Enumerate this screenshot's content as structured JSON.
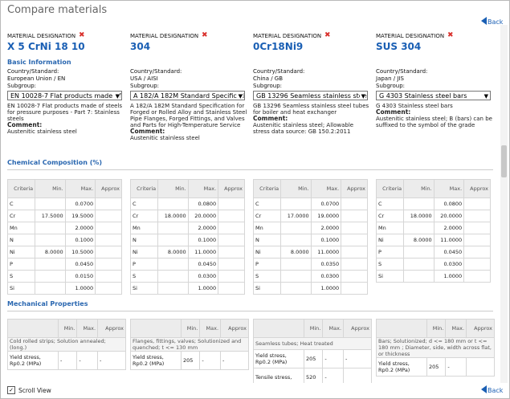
{
  "header": {
    "title": "Compare materials",
    "back": "Back"
  },
  "labels": {
    "designation": "MATERIAL DESIGNATION",
    "country": "Country/Standard:",
    "subgroup": "Subgroup:",
    "comment": "Comment:"
  },
  "sections": {
    "basic": "Basic Information",
    "chemical": "Chemical Composition (%)",
    "mechanical": "Mechanical Properties"
  },
  "materials": [
    {
      "name": "X 5 CrNi 18 10",
      "country": "European Union / EN",
      "description": "EN 10028-7 Flat products made of steels for pressure purposes - Part 7: Stainless steels",
      "comment": "Austenitic stainless steel"
    },
    {
      "name": "304",
      "country": "USA / AISI",
      "description": "A 182/A 182M Standard Specification for Forged or Rolled Alloy and Stainless Steel Pipe Flanges, Forged Fittings, and Valves and Parts for High-Temperature Service",
      "comment": "Austenitic stainless steel"
    },
    {
      "name": "0Cr18Ni9",
      "country": "China / GB",
      "description": "GB 13296 Seamless stainless steel tubes for boiler and heat exchanger",
      "comment": "Austenitic stainless steel; Allowable stress data source: GB 150.2:2011"
    },
    {
      "name": "SUS 304",
      "country": "Japan / JIS",
      "description": "G 4303 Stainless steel bars",
      "comment": "Austenitic stainless steel; B (bars) can be suffixed to the symbol of the grade"
    }
  ],
  "chemical": {
    "headers": [
      "Criteria",
      "Min.",
      "Max.",
      "Approx"
    ],
    "tables": [
      [
        [
          "C",
          null,
          "0.0700",
          null
        ],
        [
          "Cr",
          "17.5000",
          "19.5000",
          null
        ],
        [
          "Mn",
          null,
          "2.0000",
          null
        ],
        [
          "N",
          null,
          "0.1000",
          null
        ],
        [
          "Ni",
          "8.0000",
          "10.5000",
          null
        ],
        [
          "P",
          null,
          "0.0450",
          null
        ],
        [
          "S",
          null,
          "0.0150",
          null
        ],
        [
          "Si",
          null,
          "1.0000",
          null
        ]
      ],
      [
        [
          "C",
          null,
          "0.0800",
          null
        ],
        [
          "Cr",
          "18.0000",
          "20.0000",
          null
        ],
        [
          "Mn",
          null,
          "2.0000",
          null
        ],
        [
          "N",
          null,
          "0.1000",
          null
        ],
        [
          "Ni",
          "8.0000",
          "11.0000",
          null
        ],
        [
          "P",
          null,
          "0.0450",
          null
        ],
        [
          "S",
          null,
          "0.0300",
          null
        ],
        [
          "Si",
          null,
          "1.0000",
          null
        ]
      ],
      [
        [
          "C",
          null,
          "0.0700",
          null
        ],
        [
          "Cr",
          "17.0000",
          "19.0000",
          null
        ],
        [
          "Mn",
          null,
          "2.0000",
          null
        ],
        [
          "N",
          null,
          "0.1000",
          null
        ],
        [
          "Ni",
          "8.0000",
          "11.0000",
          null
        ],
        [
          "P",
          null,
          "0.0350",
          null
        ],
        [
          "S",
          null,
          "0.0300",
          null
        ],
        [
          "Si",
          null,
          "1.0000",
          null
        ]
      ],
      [
        [
          "C",
          null,
          "0.0800",
          null
        ],
        [
          "Cr",
          "18.0000",
          "20.0000",
          null
        ],
        [
          "Mn",
          null,
          "2.0000",
          null
        ],
        [
          "Ni",
          "8.0000",
          "11.0000",
          null
        ],
        [
          "P",
          null,
          "0.0450",
          null
        ],
        [
          "S",
          null,
          "0.0300",
          null
        ],
        [
          "Si",
          null,
          "1.0000",
          null
        ]
      ]
    ]
  },
  "mechanical": {
    "headers": [
      "Min.",
      "Max.",
      "Approx"
    ],
    "tables": [
      {
        "group": "Cold rolled strips; Solution annealed; (long.)",
        "rows": [
          [
            "Yield stress, Rp0.2 (MPa)",
            "-",
            "-",
            "-"
          ]
        ]
      },
      {
        "group": "Flanges, fittings, valves; Solutionized and quenched; t <= 130 mm",
        "rows": [
          [
            "Yield stress, Rp0.2 (MPa)",
            "205",
            "-",
            "-"
          ]
        ]
      },
      {
        "group": "Seamless tubes; Heat treated",
        "rows": [
          [
            "Yield stress, Rp0.2 (MPa)",
            "205",
            "-",
            "-"
          ],
          [
            "Tensile stress,",
            "520",
            "-",
            null
          ]
        ]
      },
      {
        "group": "Bars; Solutionized; d <= 180 mm or t <= 180 mm ; Diameter, side, width across flat, or thickness",
        "rows": [
          [
            "Yield stress, Rp0.2 (MPa)",
            "205",
            "-",
            null
          ]
        ]
      }
    ]
  },
  "footer": {
    "scroll": "Scroll View"
  }
}
